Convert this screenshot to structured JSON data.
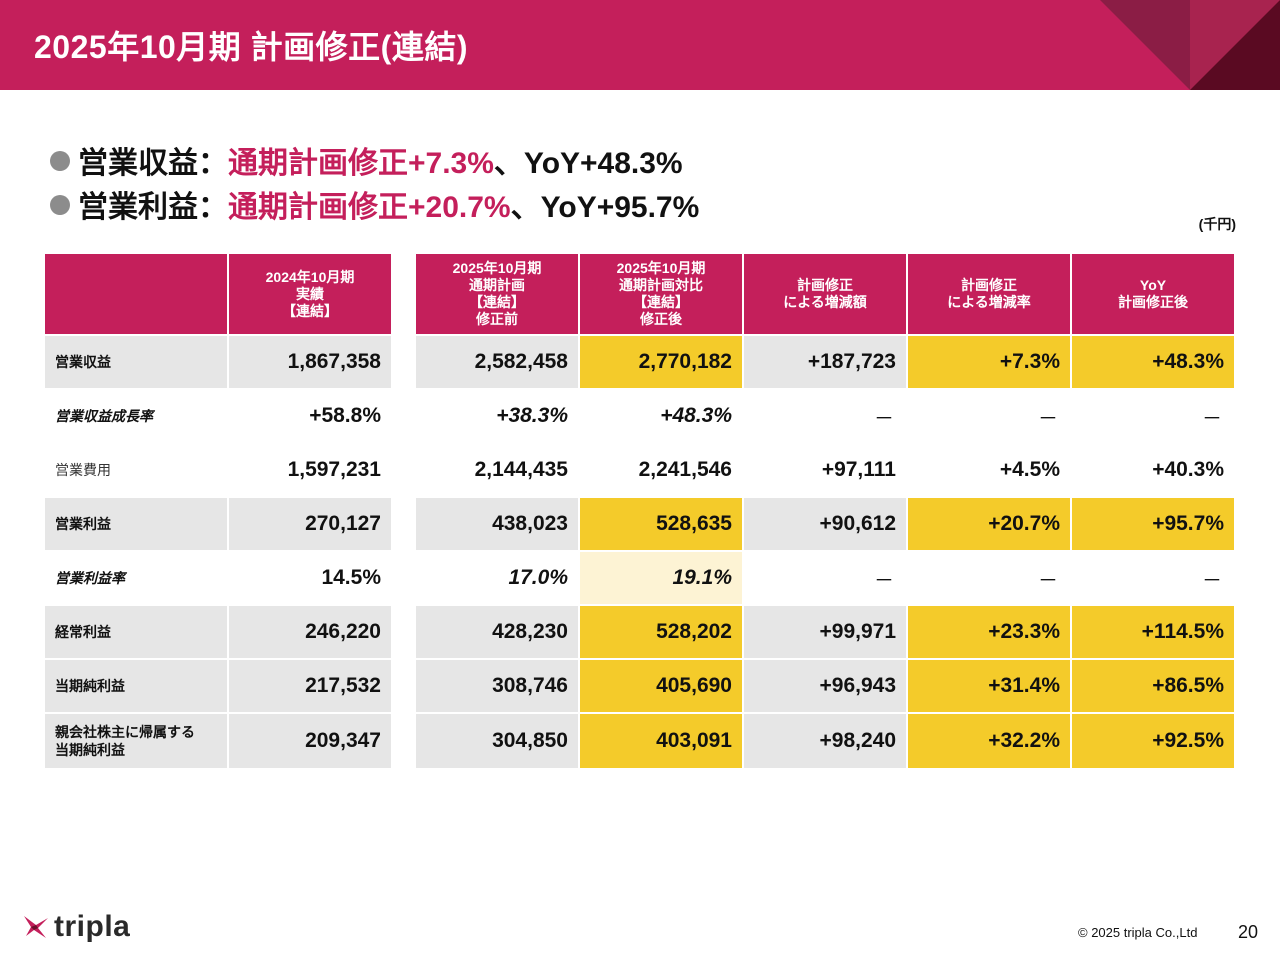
{
  "header": {
    "title": "2025年10月期 計画修正(連結)"
  },
  "colors": {
    "brand": "#c41f5b",
    "highlight": "#f4cb2a",
    "highlight_light": "#fdf3d4",
    "row_gray": "#e6e6e6"
  },
  "bullets": [
    {
      "label": "営業収益：",
      "highlight": "通期計画修正+7.3%",
      "rest": "、YoY+48.3%"
    },
    {
      "label": "営業利益：",
      "highlight": "通期計画修正+20.7%",
      "rest": "、YoY+95.7%"
    }
  ],
  "unit": "(千円)",
  "table": {
    "headers": [
      "2024年10月期\n実績\n【連結】",
      "2025年10月期\n通期計画\n【連結】\n修正前",
      "2025年10月期\n通期計画対比\n【連結】\n修正後",
      "計画修正\nによる増減額",
      "計画修正\nによる増減率",
      "YoY\n計画修正後"
    ],
    "rows": [
      {
        "label": "営業収益",
        "style": "bold",
        "bg": "gray",
        "cells": [
          "1,867,358",
          "2,582,458",
          "2,770,182",
          "+187,723",
          "+7.3%",
          "+48.3%"
        ],
        "hl": [
          2,
          4,
          5
        ]
      },
      {
        "label": "営業収益成長率",
        "style": "italic",
        "bg": "white",
        "cells": [
          "+58.8%",
          "+38.3%",
          "+48.3%",
          "－",
          "－",
          "－"
        ],
        "hl": []
      },
      {
        "label": "営業費用",
        "style": "light",
        "bg": "white",
        "cells": [
          "1,597,231",
          "2,144,435",
          "2,241,546",
          "+97,111",
          "+4.5%",
          "+40.3%"
        ],
        "hl": []
      },
      {
        "label": "営業利益",
        "style": "bold",
        "bg": "gray",
        "cells": [
          "270,127",
          "438,023",
          "528,635",
          "+90,612",
          "+20.7%",
          "+95.7%"
        ],
        "hl": [
          2,
          4,
          5
        ]
      },
      {
        "label": "営業利益率",
        "style": "italic",
        "bg": "white",
        "cells": [
          "14.5%",
          "17.0%",
          "19.1%",
          "－",
          "－",
          "－"
        ],
        "hl": [],
        "hl_light": [
          2
        ]
      },
      {
        "label": "経常利益",
        "style": "bold",
        "bg": "gray",
        "cells": [
          "246,220",
          "428,230",
          "528,202",
          "+99,971",
          "+23.3%",
          "+114.5%"
        ],
        "hl": [
          2,
          4,
          5
        ]
      },
      {
        "label": "当期純利益",
        "style": "bold",
        "bg": "gray",
        "cells": [
          "217,532",
          "308,746",
          "405,690",
          "+96,943",
          "+31.4%",
          "+86.5%"
        ],
        "hl": [
          2,
          4,
          5
        ]
      },
      {
        "label": "親会社株主に帰属する\n当期純利益",
        "style": "bold",
        "bg": "gray",
        "cells": [
          "209,347",
          "304,850",
          "403,091",
          "+98,240",
          "+32.2%",
          "+92.5%"
        ],
        "hl": [
          2,
          4,
          5
        ]
      }
    ]
  },
  "footer": {
    "logo_text": "tripla",
    "copyright": "© 2025 tripla Co.,Ltd",
    "page_number": "20"
  }
}
